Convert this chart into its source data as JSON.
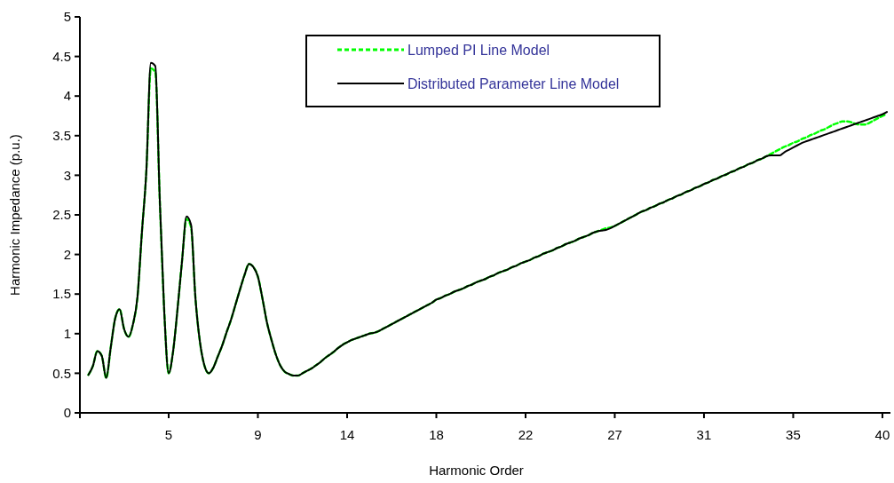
{
  "chart_data": {
    "type": "line",
    "xlabel": "Harmonic Order",
    "ylabel": "Harmonic Impedance (p.u.)",
    "categories": [
      null,
      null,
      null,
      null,
      null,
      null,
      null,
      null,
      null,
      null,
      null,
      null,
      null,
      null,
      null,
      null,
      null,
      null,
      "5",
      null,
      null,
      null,
      null,
      null,
      null,
      null,
      null,
      null,
      null,
      null,
      null,
      null,
      null,
      null,
      null,
      null,
      null,
      null,
      "9",
      null,
      null,
      null,
      null,
      null,
      null,
      null,
      null,
      null,
      null,
      null,
      null,
      null,
      null,
      null,
      null,
      null,
      null,
      null,
      "14",
      null,
      null,
      null,
      null,
      null,
      null,
      null,
      null,
      null,
      null,
      null,
      null,
      null,
      null,
      null,
      null,
      null,
      null,
      null,
      "18",
      null,
      null,
      null,
      null,
      null,
      null,
      null,
      null,
      null,
      null,
      null,
      null,
      null,
      null,
      null,
      null,
      null,
      null,
      null,
      "22",
      null,
      null,
      null,
      null,
      null,
      null,
      null,
      null,
      null,
      null,
      null,
      null,
      null,
      null,
      null,
      null,
      null,
      null,
      null,
      "27",
      null,
      null,
      null,
      null,
      null,
      null,
      null,
      null,
      null,
      null,
      null,
      null,
      null,
      null,
      null,
      null,
      null,
      null,
      null,
      "31",
      null,
      null,
      null,
      null,
      null,
      null,
      null,
      null,
      null,
      null,
      null,
      null,
      null,
      null,
      null,
      null,
      null,
      null,
      null,
      "35",
      null,
      null,
      null,
      null,
      null,
      null,
      null,
      null,
      null,
      null,
      null,
      null,
      null,
      null,
      null,
      null,
      null,
      null,
      null,
      "40",
      null
    ],
    "series": [
      {
        "name": "Lumped PI Line Model",
        "color": "#00ff00",
        "line_style": "dashed",
        "values": [
          0.48,
          0.59,
          0.78,
          0.72,
          0.44,
          0.82,
          1.19,
          1.31,
          1.06,
          0.96,
          1.12,
          1.46,
          2.28,
          3.06,
          4.35,
          4.3,
          2.7,
          1.29,
          0.5,
          0.78,
          1.32,
          1.92,
          2.45,
          2.35,
          1.45,
          0.9,
          0.6,
          0.5,
          0.57,
          0.71,
          0.85,
          1.02,
          1.18,
          1.37,
          1.56,
          1.74,
          1.88,
          1.84,
          1.72,
          1.45,
          1.15,
          0.93,
          0.74,
          0.6,
          0.52,
          0.49,
          0.47,
          0.47,
          0.5,
          0.53,
          0.56,
          0.6,
          0.64,
          0.69,
          0.73,
          0.77,
          0.82,
          0.86,
          0.89,
          0.92,
          0.94,
          0.96,
          0.98,
          1.0,
          1.01,
          1.03,
          1.06,
          1.09,
          1.12,
          1.15,
          1.18,
          1.21,
          1.24,
          1.27,
          1.3,
          1.33,
          1.36,
          1.39,
          1.43,
          1.45,
          1.48,
          1.5,
          1.53,
          1.55,
          1.57,
          1.6,
          1.62,
          1.65,
          1.67,
          1.69,
          1.72,
          1.74,
          1.77,
          1.79,
          1.81,
          1.84,
          1.86,
          1.89,
          1.91,
          1.93,
          1.96,
          1.98,
          2.01,
          2.03,
          2.05,
          2.08,
          2.1,
          2.13,
          2.15,
          2.17,
          2.2,
          2.22,
          2.24,
          2.27,
          2.29,
          2.31,
          2.33,
          2.34,
          2.36,
          2.39,
          2.42,
          2.45,
          2.48,
          2.51,
          2.54,
          2.56,
          2.59,
          2.61,
          2.64,
          2.66,
          2.69,
          2.71,
          2.74,
          2.76,
          2.79,
          2.81,
          2.84,
          2.86,
          2.89,
          2.91,
          2.94,
          2.96,
          2.99,
          3.01,
          3.04,
          3.06,
          3.09,
          3.11,
          3.14,
          3.16,
          3.19,
          3.21,
          3.24,
          3.27,
          3.3,
          3.33,
          3.36,
          3.38,
          3.41,
          3.43,
          3.46,
          3.48,
          3.51,
          3.53,
          3.56,
          3.58,
          3.61,
          3.64,
          3.66,
          3.68,
          3.68,
          3.67,
          3.65,
          3.64,
          3.64,
          3.66,
          3.69,
          3.72,
          3.75,
          3.77
        ]
      },
      {
        "name": "Distributed Parameter Line Model",
        "color": "#000000",
        "line_style": "solid",
        "values": [
          0.48,
          0.59,
          0.78,
          0.72,
          0.44,
          0.82,
          1.19,
          1.31,
          1.06,
          0.96,
          1.12,
          1.46,
          2.28,
          3.06,
          4.42,
          4.38,
          2.7,
          1.29,
          0.5,
          0.78,
          1.32,
          1.92,
          2.48,
          2.38,
          1.45,
          0.9,
          0.6,
          0.5,
          0.57,
          0.71,
          0.85,
          1.02,
          1.18,
          1.37,
          1.56,
          1.74,
          1.88,
          1.84,
          1.72,
          1.45,
          1.15,
          0.93,
          0.74,
          0.6,
          0.52,
          0.49,
          0.47,
          0.47,
          0.5,
          0.53,
          0.56,
          0.6,
          0.64,
          0.69,
          0.73,
          0.77,
          0.82,
          0.86,
          0.89,
          0.92,
          0.94,
          0.96,
          0.98,
          1.0,
          1.01,
          1.03,
          1.06,
          1.09,
          1.12,
          1.15,
          1.18,
          1.21,
          1.24,
          1.27,
          1.3,
          1.33,
          1.36,
          1.39,
          1.43,
          1.45,
          1.48,
          1.5,
          1.53,
          1.55,
          1.57,
          1.6,
          1.62,
          1.65,
          1.67,
          1.69,
          1.72,
          1.74,
          1.77,
          1.79,
          1.81,
          1.84,
          1.86,
          1.89,
          1.91,
          1.93,
          1.96,
          1.98,
          2.01,
          2.03,
          2.05,
          2.08,
          2.1,
          2.13,
          2.15,
          2.17,
          2.2,
          2.22,
          2.24,
          2.27,
          2.29,
          2.3,
          2.31,
          2.33,
          2.36,
          2.39,
          2.42,
          2.45,
          2.48,
          2.51,
          2.54,
          2.56,
          2.59,
          2.61,
          2.64,
          2.66,
          2.69,
          2.71,
          2.74,
          2.76,
          2.79,
          2.81,
          2.84,
          2.86,
          2.89,
          2.91,
          2.94,
          2.96,
          2.99,
          3.01,
          3.04,
          3.06,
          3.09,
          3.11,
          3.14,
          3.16,
          3.19,
          3.21,
          3.24,
          3.25,
          3.25,
          3.25,
          3.29,
          3.32,
          3.35,
          3.38,
          3.41,
          3.43,
          3.45,
          3.47,
          3.49,
          3.51,
          3.53,
          3.55,
          3.57,
          3.59,
          3.61,
          3.63,
          3.65,
          3.67,
          3.69,
          3.71,
          3.73,
          3.75,
          3.77,
          3.8
        ]
      }
    ],
    "ylim": [
      0,
      5
    ],
    "yticks": [
      0,
      0.5,
      1,
      1.5,
      2,
      2.5,
      3,
      3.5,
      4,
      4.5,
      5
    ],
    "legend": "top",
    "grid": false,
    "marker": "none"
  }
}
